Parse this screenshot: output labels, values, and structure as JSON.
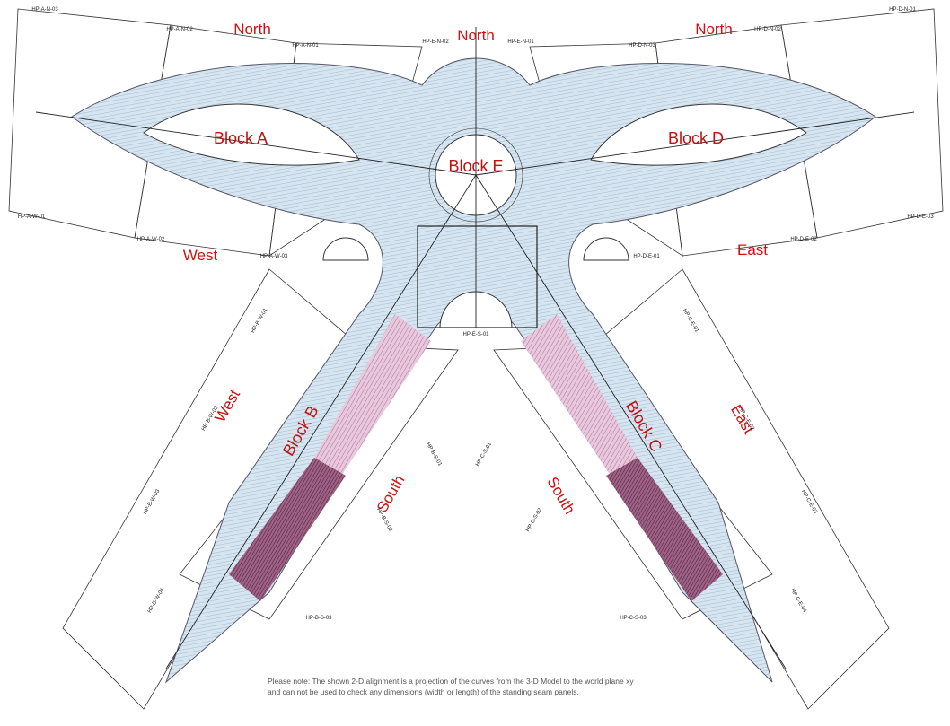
{
  "directions": [
    "North",
    "North",
    "North",
    "West",
    "East",
    "West",
    "East",
    "South",
    "South"
  ],
  "blocks": [
    "Block A",
    "Block D",
    "Block E",
    "Block B",
    "Block C"
  ],
  "sheets": [
    "HP-A-N-03",
    "HP-A-N-02",
    "HP-A-N-01",
    "HP-E-N-02",
    "HP-E-N-01",
    "HP-D-N-03",
    "HP-D-N-02",
    "HP-D-N-01",
    "HP-A-W-01",
    "HP-A-W-02",
    "HP-A-W-03",
    "HP-D-E-01",
    "HP-D-E-02",
    "HP-D-E-03",
    "HP-E-S-01",
    "HP-B-W-01",
    "HP-B-W-02",
    "HP-B-W-03",
    "HP-B-W-04",
    "HP-B-S-01",
    "HP-B-S-02",
    "HP-B-S-03",
    "HP-C-E-01",
    "HP-C-E-02",
    "HP-C-E-03",
    "HP-C-E-04",
    "HP-C-S-01",
    "HP-C-S-02",
    "HP-C-S-03"
  ],
  "note": [
    "Please note: The shown 2-D alignment is a projection of the curves from the 3-D Model to the world plane xy",
    "and can not be used to check any dimensions (width or length) of the standing seam panels."
  ]
}
